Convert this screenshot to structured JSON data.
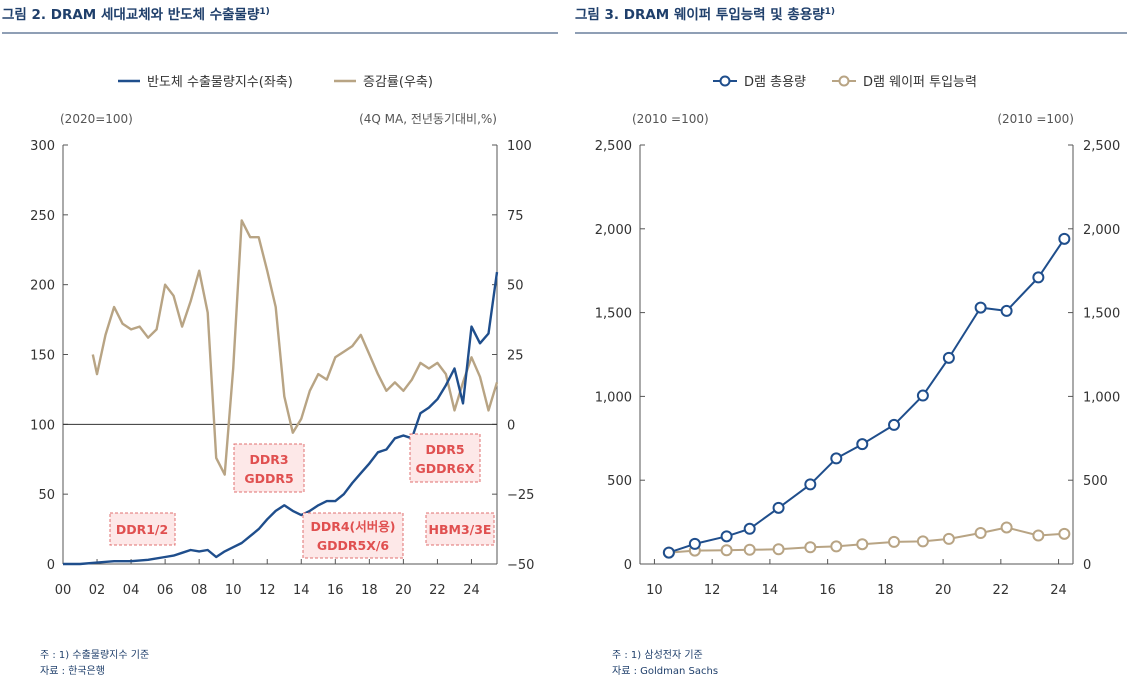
{
  "fig2": {
    "title": "그림 2. DRAM 세대교체와 반도체 수출물량",
    "title_sup": "1)",
    "legend": [
      "반도체 수출물량지수(좌축)",
      "증감률(우축)"
    ],
    "left_unit": "(2020=100)",
    "right_unit": "(4Q MA, 전년동기대비,%)",
    "note": "주 : 1) 수출물량지수 기준",
    "source": "자료 : 한국은행",
    "annotations": [
      {
        "lines": [
          "DDR1/2"
        ]
      },
      {
        "lines": [
          "DDR3",
          "GDDR5"
        ]
      },
      {
        "lines": [
          "DDR4(서버용)",
          "GDDR5X/6"
        ]
      },
      {
        "lines": [
          "DDR5",
          "GDDR6X"
        ]
      },
      {
        "lines": [
          "HBM3/3E"
        ]
      }
    ]
  },
  "fig3": {
    "title": "그림 3. DRAM 웨이퍼 투입능력 및 총용량",
    "title_sup": "1)",
    "legend": [
      "D램 총용량",
      "D램 웨이퍼 투입능력"
    ],
    "left_unit": "(2010 =100)",
    "right_unit": "(2010 =100)",
    "note": "주 : 1) 삼성전자 기준",
    "source": "자료 : Goldman Sachs"
  },
  "colors": {
    "navy": "#1f4e8c",
    "tan": "#b8a484",
    "title": "#1f3f6b",
    "ann": "#e05050"
  },
  "chart_data": [
    {
      "type": "line",
      "title": "DRAM 세대교체와 반도체 수출물량",
      "x_ticks": [
        "00",
        "02",
        "04",
        "06",
        "08",
        "10",
        "12",
        "14",
        "16",
        "18",
        "20",
        "22",
        "24"
      ],
      "x_range": [
        2000,
        2025.5
      ],
      "y_left": {
        "ticks": [
          "0",
          "50",
          "100",
          "150",
          "200",
          "250",
          "300"
        ],
        "range": [
          0,
          300
        ]
      },
      "y_right": {
        "ticks": [
          "−50",
          "−25",
          "0",
          "25",
          "50",
          "75",
          "100"
        ],
        "range": [
          -50,
          100
        ]
      },
      "series": [
        {
          "name": "반도체 수출물량지수(좌축)",
          "axis": "left",
          "x": [
            2000,
            2001,
            2002,
            2003,
            2004,
            2005,
            2006,
            2006.5,
            2007,
            2007.5,
            2008,
            2008.5,
            2009,
            2009.5,
            2010,
            2010.5,
            2011,
            2011.5,
            2012,
            2012.5,
            2013,
            2013.5,
            2014,
            2014.5,
            2015,
            2015.5,
            2016,
            2016.5,
            2017,
            2017.5,
            2018,
            2018.5,
            2019,
            2019.5,
            2020,
            2020.5,
            2021,
            2021.5,
            2022,
            2022.5,
            2023,
            2023.5,
            2024,
            2024.5,
            2025,
            2025.5
          ],
          "values": [
            0,
            0,
            1,
            2,
            2,
            3,
            5,
            6,
            8,
            10,
            9,
            10,
            5,
            9,
            12,
            15,
            20,
            25,
            32,
            38,
            42,
            38,
            35,
            38,
            42,
            45,
            45,
            50,
            58,
            65,
            72,
            80,
            82,
            90,
            92,
            90,
            108,
            112,
            118,
            128,
            140,
            115,
            170,
            158,
            165,
            209
          ]
        },
        {
          "name": "증감률(우축)",
          "axis": "right",
          "x": [
            2001.75,
            2002,
            2002.5,
            2003,
            2003.5,
            2004,
            2004.5,
            2005,
            2005.5,
            2006,
            2006.5,
            2007,
            2007.5,
            2008,
            2008.5,
            2009,
            2009.5,
            2010,
            2010.5,
            2011,
            2011.5,
            2012,
            2012.5,
            2013,
            2013.5,
            2014,
            2014.5,
            2015,
            2015.5,
            2016,
            2016.5,
            2017,
            2017.5,
            2018,
            2018.5,
            2019,
            2019.5,
            2020,
            2020.5,
            2021,
            2021.5,
            2022,
            2022.5,
            2023,
            2023.5,
            2024,
            2024.5,
            2025,
            2025.5
          ],
          "values": [
            25,
            18,
            32,
            42,
            36,
            34,
            35,
            31,
            34,
            50,
            46,
            35,
            44,
            55,
            40,
            -12,
            -18,
            20,
            73,
            67,
            67,
            55,
            42,
            10,
            -3,
            2,
            12,
            18,
            16,
            24,
            26,
            28,
            32,
            25,
            18,
            12,
            15,
            12,
            16,
            22,
            20,
            22,
            18,
            5,
            15,
            24,
            17,
            5,
            15
          ]
        }
      ],
      "reference_line": {
        "axis": "left",
        "value": 100
      }
    },
    {
      "type": "line",
      "title": "DRAM 웨이퍼 투입능력 및 총용량",
      "x_ticks": [
        "10",
        "12",
        "14",
        "16",
        "18",
        "20",
        "22",
        "24"
      ],
      "x_range": [
        2009.5,
        2024.5
      ],
      "y_left": {
        "ticks": [
          "0",
          "500",
          "1,000",
          "1,500",
          "2,000",
          "2,500"
        ],
        "range": [
          0,
          2500
        ]
      },
      "y_right": {
        "ticks": [
          "0",
          "500",
          "1,000",
          "1,500",
          "2,000",
          "2,500"
        ],
        "range": [
          0,
          2500
        ]
      },
      "series": [
        {
          "name": "D램 총용량",
          "x": [
            2010.5,
            2011.4,
            2012.5,
            2013.3,
            2014.3,
            2015.4,
            2016.3,
            2017.2,
            2018.3,
            2019.3,
            2020.2,
            2021.3,
            2022.2,
            2023.3,
            2024.2
          ],
          "values": [
            68,
            120,
            165,
            210,
            335,
            475,
            630,
            715,
            830,
            1005,
            1230,
            1530,
            1510,
            1710,
            1940
          ]
        },
        {
          "name": "D램 웨이퍼 투입능력",
          "x": [
            2010.5,
            2011.4,
            2012.5,
            2013.3,
            2014.3,
            2015.4,
            2016.3,
            2017.2,
            2018.3,
            2019.3,
            2020.2,
            2021.3,
            2022.2,
            2023.3,
            2024.2
          ],
          "values": [
            68,
            80,
            82,
            85,
            88,
            100,
            105,
            118,
            132,
            135,
            150,
            185,
            218,
            170,
            180
          ]
        }
      ]
    }
  ]
}
